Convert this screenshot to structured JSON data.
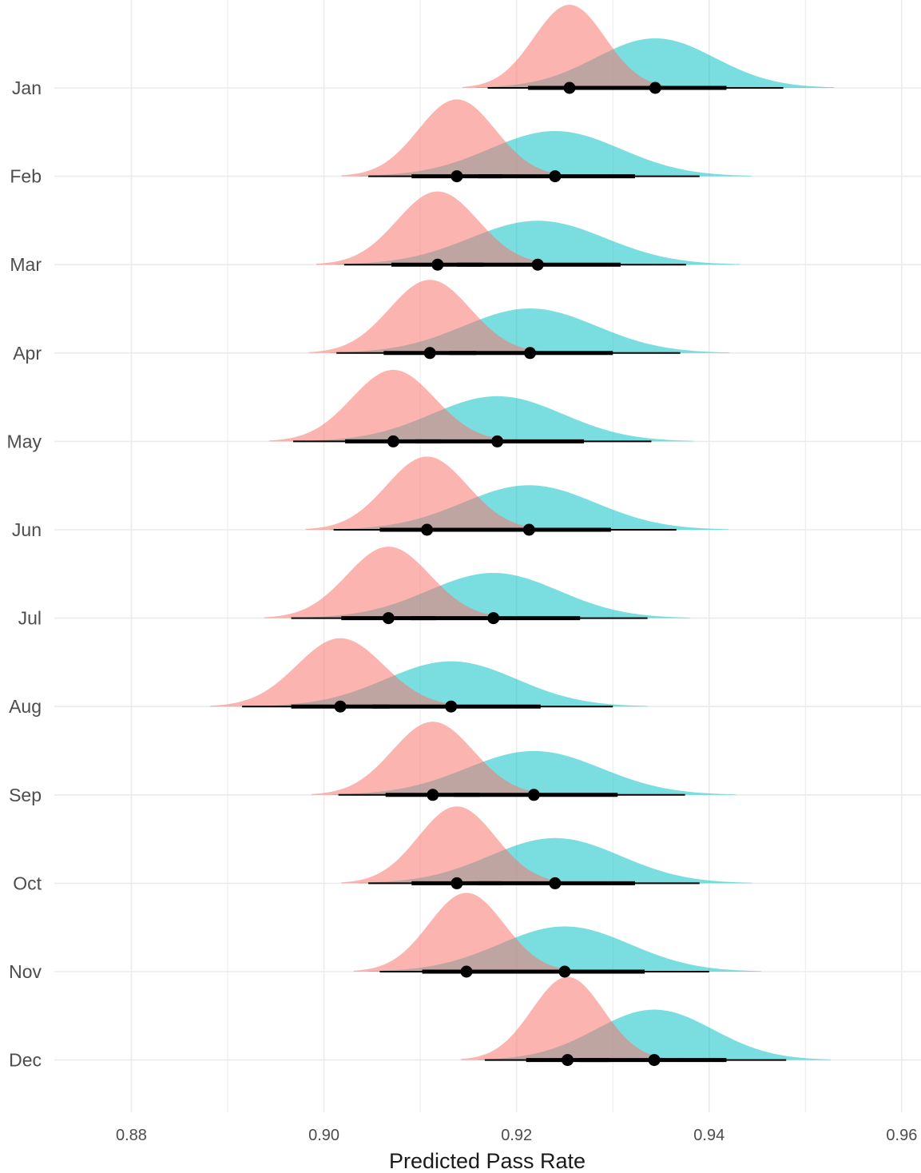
{
  "chart_data": {
    "type": "ridgeline",
    "xlabel": "Predicted Pass Rate",
    "ylabel": "",
    "xlim": [
      0.872,
      0.962
    ],
    "x_ticks": [
      "0.88",
      "0.90",
      "0.92",
      "0.94",
      "0.96"
    ],
    "x_tick_values": [
      0.88,
      0.9,
      0.92,
      0.94,
      0.96
    ],
    "grid": true,
    "legend": "none",
    "colors": {
      "pink": "#f8766d",
      "teal": "#00bfc4",
      "pink_opacity": 0.55,
      "teal_opacity": 0.52,
      "point_interval": "#000000",
      "grid": "#ebebeb"
    },
    "categories": [
      "Jan",
      "Feb",
      "Mar",
      "Apr",
      "May",
      "Jun",
      "Jul",
      "Aug",
      "Sep",
      "Oct",
      "Nov",
      "Dec"
    ],
    "series": [
      {
        "color": "pink",
        "median": [
          0.9255,
          0.9138,
          0.9118,
          0.911,
          0.9072,
          0.9107,
          0.9067,
          0.9017,
          0.9113,
          0.9138,
          0.9148,
          0.9253
        ],
        "sd": [
          0.0037,
          0.004,
          0.0042,
          0.0042,
          0.0043,
          0.0042,
          0.0043,
          0.0045,
          0.0042,
          0.004,
          0.0039,
          0.0037
        ],
        "inner_interval": [
          [
            0.9212,
            0.9298
          ],
          [
            0.9091,
            0.9185
          ],
          [
            0.907,
            0.9166
          ],
          [
            0.9062,
            0.9158
          ],
          [
            0.9022,
            0.9122
          ],
          [
            0.9058,
            0.9156
          ],
          [
            0.9018,
            0.9116
          ],
          [
            0.8966,
            0.9068
          ],
          [
            0.9064,
            0.9162
          ],
          [
            0.9091,
            0.9185
          ],
          [
            0.9102,
            0.9194
          ],
          [
            0.921,
            0.9296
          ]
        ],
        "outer_interval": [
          [
            0.917,
            0.934
          ],
          [
            0.9046,
            0.923
          ],
          [
            0.9021,
            0.9215
          ],
          [
            0.9013,
            0.9207
          ],
          [
            0.8968,
            0.9172
          ],
          [
            0.901,
            0.9204
          ],
          [
            0.8966,
            0.9168
          ],
          [
            0.8915,
            0.9119
          ],
          [
            0.9015,
            0.9211
          ],
          [
            0.9046,
            0.923
          ],
          [
            0.9058,
            0.9238
          ],
          [
            0.9167,
            0.9339
          ]
        ]
      },
      {
        "color": "teal",
        "median": [
          0.9344,
          0.924,
          0.9222,
          0.9214,
          0.918,
          0.9213,
          0.9176,
          0.9132,
          0.9218,
          0.924,
          0.925,
          0.9343
        ],
        "sd": [
          0.0062,
          0.0068,
          0.007,
          0.0069,
          0.0068,
          0.0069,
          0.0068,
          0.0068,
          0.007,
          0.0068,
          0.0068,
          0.0061
        ],
        "inner_interval": [
          [
            0.9268,
            0.9418
          ],
          [
            0.916,
            0.9323
          ],
          [
            0.9138,
            0.9308
          ],
          [
            0.913,
            0.93
          ],
          [
            0.9095,
            0.927
          ],
          [
            0.913,
            0.9298
          ],
          [
            0.909,
            0.9266
          ],
          [
            0.905,
            0.9225
          ],
          [
            0.9135,
            0.9305
          ],
          [
            0.916,
            0.9323
          ],
          [
            0.9173,
            0.9333
          ],
          [
            0.9265,
            0.9418
          ]
        ],
        "outer_interval": [
          [
            0.9213,
            0.9477
          ],
          [
            0.9094,
            0.939
          ],
          [
            0.9072,
            0.9376
          ],
          [
            0.9066,
            0.937
          ],
          [
            0.9031,
            0.934
          ],
          [
            0.9063,
            0.9366
          ],
          [
            0.9026,
            0.9336
          ],
          [
            0.898,
            0.93
          ],
          [
            0.9068,
            0.9375
          ],
          [
            0.9094,
            0.939
          ],
          [
            0.9104,
            0.94
          ],
          [
            0.9216,
            0.948
          ]
        ]
      }
    ]
  }
}
